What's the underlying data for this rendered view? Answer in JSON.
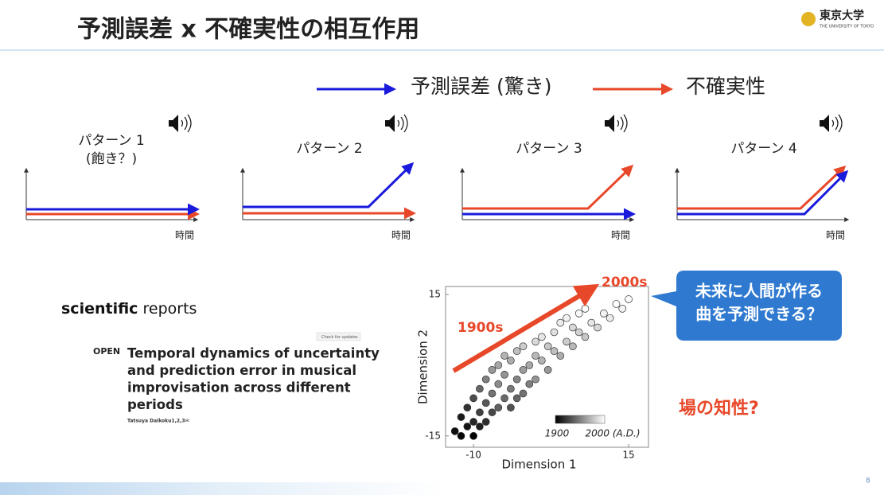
{
  "header": {
    "title": "予測誤差 x 不確実性の相互作用",
    "logo": "東京大学",
    "logo_sub": "THE UNIVERSITY OF TOKYO"
  },
  "legend": [
    {
      "label": "予測誤差 (驚き)",
      "color": "#1a1adc"
    },
    {
      "label": "不確実性",
      "color": "#e8482a"
    }
  ],
  "patterns": [
    {
      "label": "パターン 1",
      "note": "(飽き？)",
      "axis_label": "時間"
    },
    {
      "label": "パターン 2",
      "axis_label": "時間"
    },
    {
      "label": "パターン 3",
      "axis_label": "時間"
    },
    {
      "label": "パターン 4",
      "axis_label": "時間"
    }
  ],
  "paper": {
    "journal_bold": "scientific",
    "journal": "reports",
    "badge": "Check for updates",
    "open": "OPEN",
    "title_lines": [
      "Temporal dynamics of uncertainty",
      "and prediction error in musical",
      "improvisation across different",
      "periods"
    ],
    "author": "Tatsuya Daikoku1,2,3✉"
  },
  "callout": [
    "未来に人間が作る",
    "曲を予測できる？"
  ],
  "annotation": "場の知性?",
  "page_number": "8",
  "chart_data": {
    "type": "scatter",
    "xlabel": "Dimension 1",
    "ylabel": "Dimension 2",
    "xlim": [
      -14.5,
      18.2
    ],
    "ylim": [
      -17.4,
      16.7
    ],
    "xticks": [
      -10,
      15
    ],
    "yticks": [
      -15,
      15
    ],
    "arrow_start": "1900s",
    "arrow_end": "2000s",
    "colorbar": {
      "range": [
        1900,
        2000
      ],
      "labels": [
        "1900",
        "2000 (A.D.)"
      ]
    },
    "x": [
      -13,
      -12,
      -12,
      -11,
      -11,
      -10,
      -10,
      -10,
      -9,
      -9,
      -9,
      -8,
      -8,
      -8,
      -7,
      -7,
      -7,
      -6,
      -6,
      -6,
      -5,
      -5,
      -5,
      -4,
      -4,
      -4,
      -3,
      -3,
      -3,
      -2,
      -2,
      -2,
      -1,
      -1,
      0,
      0,
      0,
      1,
      1,
      2,
      2,
      3,
      3,
      4,
      4,
      5,
      5,
      6,
      6,
      7,
      7,
      8,
      8,
      9,
      10,
      11,
      12,
      13,
      14,
      15
    ],
    "values": [
      -14,
      -11,
      -15,
      -9,
      -13,
      -12,
      -7,
      -15,
      -10,
      -5,
      -13,
      -8,
      -3,
      -12,
      -6,
      -10,
      -1,
      -9,
      -4,
      0,
      -7,
      -2,
      2,
      -5,
      -9,
      1,
      -3,
      3,
      -7,
      -1,
      4,
      -6,
      0,
      -4,
      2,
      -3,
      5,
      1,
      6,
      -1,
      4,
      3,
      7,
      2,
      9,
      5,
      10,
      4,
      8,
      7,
      11,
      6,
      12,
      9,
      8,
      11,
      10,
      13,
      12,
      14
    ],
    "years": [
      1905,
      1910,
      1902,
      1920,
      1908,
      1915,
      1930,
      1900,
      1925,
      1940,
      1912,
      1935,
      1950,
      1918,
      1945,
      1928,
      1960,
      1938,
      1955,
      1965,
      1942,
      1958,
      1970,
      1948,
      1932,
      1968,
      1952,
      1975,
      1940,
      1962,
      1980,
      1945,
      1966,
      1950,
      1972,
      1958,
      1985,
      1970,
      1990,
      1960,
      1978,
      1975,
      1988,
      1968,
      1992,
      1980,
      1995,
      1972,
      1985,
      1982,
      1998,
      1978,
      2000,
      1990,
      1985,
      1995,
      1992,
      2000,
      1996,
      1998
    ]
  }
}
